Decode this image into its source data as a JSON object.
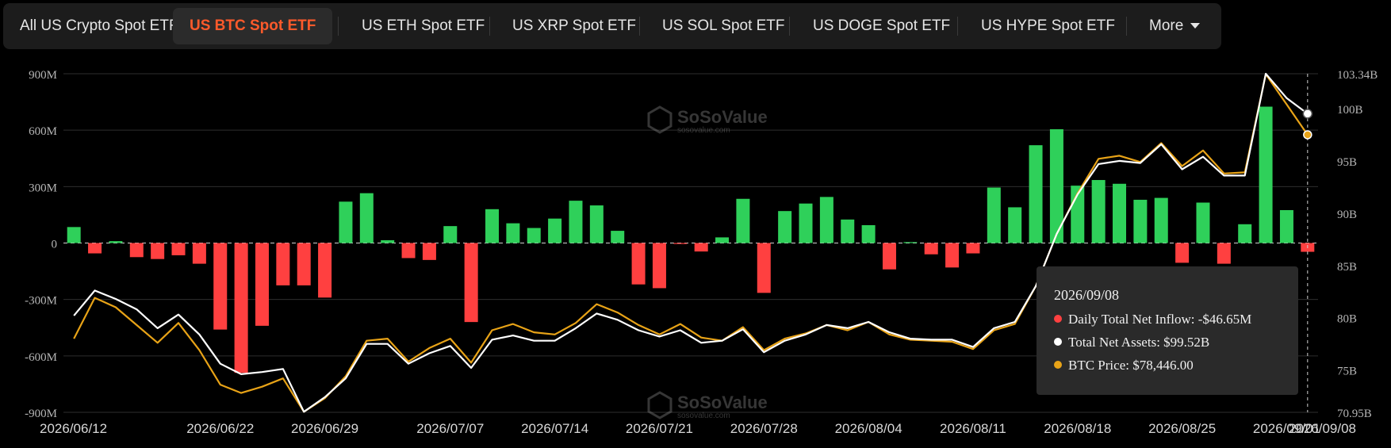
{
  "tabs": [
    {
      "label": "All US Crypto Spot ETF",
      "active": false
    },
    {
      "label": "US BTC Spot ETF",
      "active": true
    },
    {
      "label": "US ETH Spot ETF",
      "active": false
    },
    {
      "label": "US XRP Spot ETF",
      "active": false
    },
    {
      "label": "US SOL Spot ETF",
      "active": false
    },
    {
      "label": "US DOGE Spot ETF",
      "active": false
    },
    {
      "label": "US HYPE Spot ETF",
      "active": false
    }
  ],
  "more_label": "More",
  "watermark": {
    "name": "SoSoValue",
    "url": "sosovalue.com"
  },
  "tooltip": {
    "date": "2026/09/08",
    "inflow": "Daily Total Net Inflow: -$46.65M",
    "assets": "Total Net Assets: $99.52B",
    "price": "BTC Price: $78,446.00"
  },
  "colors": {
    "positive": "#2fd05a",
    "negative": "#ff4040",
    "assets_line": "#ffffff",
    "price_line": "#e8a317",
    "active_tab": "#ff5a2b"
  },
  "chart_data": {
    "type": "bar",
    "x_tick_labels": [
      "2026/06/12",
      "2026/06/22",
      "2026/06/29",
      "2026/07/07",
      "2026/07/14",
      "2026/07/21",
      "2026/07/28",
      "2026/08/04",
      "2026/08/11",
      "2026/08/18",
      "2026/08/25",
      "2026/09/01",
      "2026/09/08"
    ],
    "left_axis": {
      "ticks": [
        "900M",
        "600M",
        "300M",
        "0",
        "-300M",
        "-600M",
        "-900M"
      ],
      "ylim": [
        -900,
        900
      ],
      "unit": "M"
    },
    "right_axis": {
      "ticks": [
        "103.34B",
        "100B",
        "95B",
        "90B",
        "85B",
        "80B",
        "75B",
        "70.95B"
      ],
      "ylim": [
        70.95,
        103.34
      ],
      "unit": "B"
    },
    "grid": true,
    "series": [
      {
        "name": "Daily Total Net Inflow",
        "kind": "bar",
        "axis": "left",
        "values": [
          85,
          -55,
          10,
          -75,
          -85,
          -65,
          -110,
          -460,
          -690,
          -440,
          -225,
          -225,
          -290,
          220,
          265,
          15,
          -80,
          -90,
          90,
          -420,
          180,
          105,
          80,
          130,
          225,
          200,
          65,
          -220,
          -240,
          -5,
          -45,
          30,
          235,
          -265,
          170,
          210,
          245,
          125,
          95,
          -140,
          5,
          -60,
          -130,
          -55,
          295,
          190,
          520,
          605,
          305,
          335,
          315,
          230,
          240,
          -105,
          215,
          -110,
          100,
          725,
          175,
          -46.65
        ]
      },
      {
        "name": "Total Net Assets",
        "kind": "line",
        "axis": "right",
        "values": [
          80.2,
          82.6,
          81.8,
          80.8,
          79.0,
          80.3,
          78.4,
          75.6,
          74.6,
          74.8,
          75.1,
          71.0,
          72.4,
          74.2,
          77.5,
          77.5,
          75.6,
          76.6,
          77.3,
          75.2,
          77.9,
          78.3,
          77.8,
          77.8,
          79.0,
          80.4,
          79.8,
          78.8,
          78.2,
          78.8,
          77.6,
          77.8,
          78.9,
          76.7,
          77.8,
          78.4,
          79.3,
          79.0,
          79.6,
          78.6,
          78.0,
          77.9,
          77.9,
          77.2,
          79.0,
          79.6,
          83.0,
          88.0,
          91.8,
          94.7,
          95.0,
          94.8,
          96.6,
          94.2,
          95.4,
          93.6,
          93.6,
          103.34,
          101.0,
          99.52
        ]
      },
      {
        "name": "BTC Price",
        "kind": "line",
        "axis": "right",
        "values": [
          78.0,
          81.9,
          81.0,
          79.3,
          77.6,
          79.5,
          76.9,
          73.6,
          72.8,
          73.4,
          74.2,
          71.0,
          72.3,
          74.4,
          77.8,
          78.0,
          75.8,
          77.1,
          78.0,
          75.7,
          78.8,
          79.4,
          78.6,
          78.4,
          79.5,
          81.3,
          80.5,
          79.3,
          78.4,
          79.4,
          78.1,
          77.8,
          79.1,
          76.9,
          78.0,
          78.5,
          79.3,
          78.8,
          79.6,
          78.4,
          77.9,
          77.8,
          77.7,
          77.0,
          78.8,
          79.4,
          83.0,
          88.0,
          91.9,
          95.2,
          95.5,
          94.9,
          96.7,
          94.5,
          96.0,
          93.8,
          93.9,
          103.3,
          100.4,
          78.446
        ]
      }
    ]
  }
}
